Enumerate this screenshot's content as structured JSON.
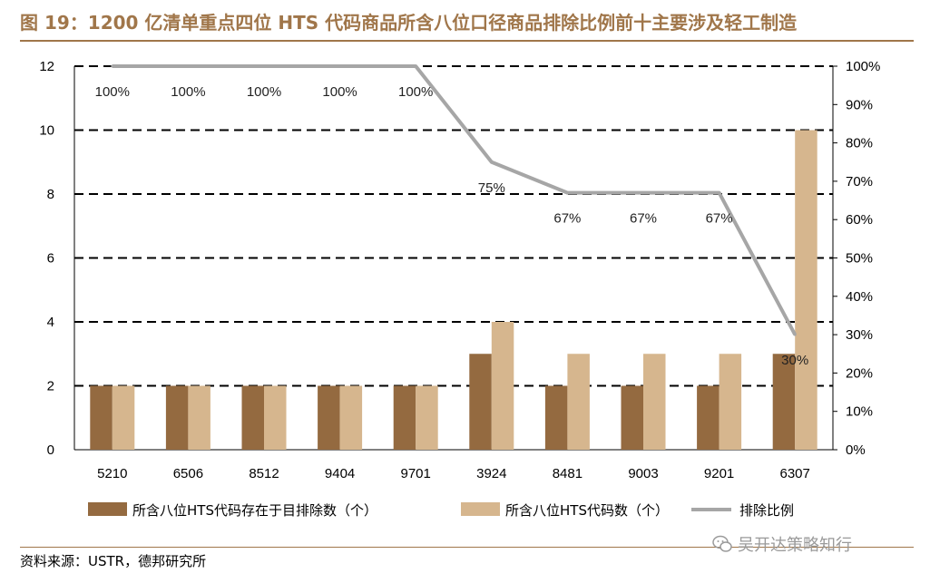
{
  "title": "图 19：1200 亿清单重点四位 HTS 代码商品所含八位口径商品排除比例前十主要涉及轻工制造",
  "source": "资料来源：USTR，德邦研究所",
  "watermark": "吴开达策略知行",
  "colors": {
    "title": "#a0764a",
    "excluded_bar": "#946a40",
    "total_bar": "#d6b68e",
    "ratio_line": "#a6a6a6"
  },
  "chart_data": {
    "type": "bar",
    "categories": [
      "5210",
      "6506",
      "8512",
      "9404",
      "9701",
      "3924",
      "8481",
      "9003",
      "9201",
      "6307"
    ],
    "series": [
      {
        "name": "所含八位HTS代码存在于目排除数（个）",
        "type": "bar",
        "axis": "left",
        "values": [
          2,
          2,
          2,
          2,
          2,
          3,
          2,
          2,
          2,
          3
        ]
      },
      {
        "name": "所含八位HTS代码数（个）",
        "type": "bar",
        "axis": "left",
        "values": [
          2,
          2,
          2,
          2,
          2,
          4,
          3,
          3,
          3,
          10
        ]
      },
      {
        "name": "排除比例",
        "type": "line",
        "axis": "right",
        "values": [
          100,
          100,
          100,
          100,
          100,
          75,
          67,
          67,
          67,
          30
        ]
      }
    ],
    "data_labels": [
      "100%",
      "100%",
      "100%",
      "100%",
      "100%",
      "75%",
      "67%",
      "67%",
      "67%",
      "30%"
    ],
    "left_axis": {
      "ylim": [
        0,
        12
      ],
      "ticks": [
        "0",
        "2",
        "4",
        "6",
        "8",
        "10",
        "12"
      ]
    },
    "right_axis": {
      "ylim": [
        0,
        100
      ],
      "ticks": [
        "0%",
        "10%",
        "20%",
        "30%",
        "40%",
        "50%",
        "60%",
        "70%",
        "80%",
        "90%",
        "100%"
      ]
    },
    "grid": "dashed horizontal at left-axis ticks",
    "legend_position": "bottom"
  }
}
